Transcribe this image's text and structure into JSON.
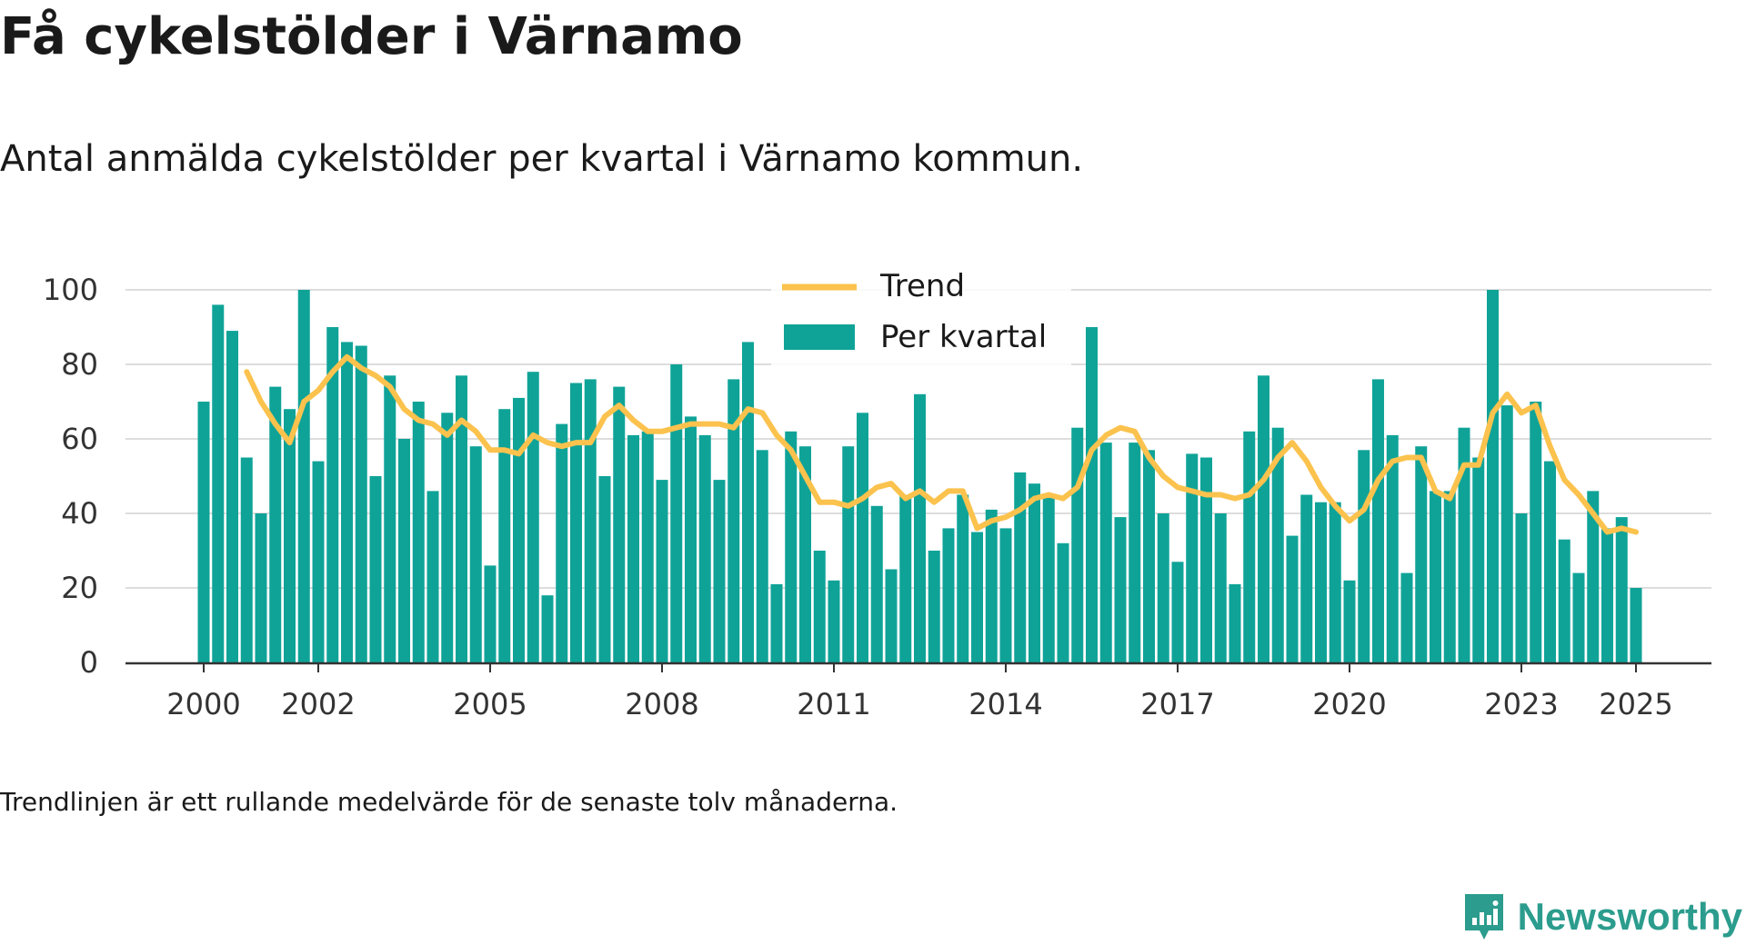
{
  "header": {
    "title": "Få cykelstölder i Värnamo",
    "subtitle": "Antal anmälda cykelstölder per kvartal i Värnamo kommun."
  },
  "footer": {
    "note": "Trendlinjen är ett rullande medelvärde för de senaste tolv månaderna.",
    "brand": "Newsworthy",
    "brand_icon": "chart-speech-bubble-icon"
  },
  "colors": {
    "bars": "#0fa398",
    "trend": "#fbc24d",
    "grid": "#dddddd",
    "axis": "#333333",
    "brand": "#2b9c8d"
  },
  "chart_data": {
    "type": "bar",
    "x_start": "2000 Q1",
    "x_tick_labels": [
      "2000",
      "2002",
      "2005",
      "2008",
      "2011",
      "2014",
      "2017",
      "2020",
      "2023",
      "2025"
    ],
    "x_tick_years": [
      2000,
      2002,
      2005,
      2008,
      2011,
      2014,
      2017,
      2020,
      2023,
      2025
    ],
    "ylim": [
      0,
      100
    ],
    "y_ticks": [
      0,
      20,
      40,
      60,
      80,
      100
    ],
    "grid": true,
    "legend_position": "top-center",
    "legend": [
      {
        "label": "Trend",
        "kind": "line"
      },
      {
        "label": "Per kvartal",
        "kind": "bar"
      }
    ],
    "series": [
      {
        "name": "Per kvartal",
        "type": "bar",
        "values": [
          70,
          96,
          89,
          55,
          40,
          74,
          68,
          100,
          54,
          90,
          86,
          85,
          50,
          77,
          60,
          70,
          46,
          67,
          77,
          58,
          26,
          68,
          71,
          78,
          18,
          64,
          75,
          76,
          50,
          74,
          61,
          62,
          49,
          80,
          66,
          61,
          49,
          76,
          86,
          57,
          21,
          62,
          58,
          30,
          22,
          58,
          67,
          42,
          25,
          45,
          72,
          30,
          36,
          45,
          35,
          41,
          36,
          51,
          48,
          45,
          32,
          63,
          90,
          59,
          39,
          59,
          57,
          40,
          27,
          56,
          55,
          40,
          21,
          62,
          77,
          63,
          34,
          45,
          43,
          43,
          22,
          57,
          76,
          61,
          24,
          58,
          46,
          46,
          63,
          55,
          100,
          69,
          40,
          70,
          54,
          33,
          24,
          46,
          36,
          39,
          20
        ]
      },
      {
        "name": "Trend",
        "type": "line",
        "values": [
          null,
          null,
          null,
          78,
          70,
          64,
          59,
          70,
          73,
          78,
          82,
          79,
          77,
          74,
          68,
          65,
          64,
          61,
          65,
          62,
          57,
          57,
          56,
          61,
          59,
          58,
          59,
          59,
          66,
          69,
          65,
          62,
          62,
          63,
          64,
          64,
          64,
          63,
          68,
          67,
          61,
          57,
          50,
          43,
          43,
          42,
          44,
          47,
          48,
          44,
          46,
          43,
          46,
          46,
          36,
          38,
          39,
          41,
          44,
          45,
          44,
          47,
          57,
          61,
          63,
          62,
          55,
          50,
          47,
          46,
          45,
          45,
          44,
          45,
          49,
          55,
          59,
          54,
          47,
          42,
          38,
          41,
          49,
          54,
          55,
          55,
          46,
          44,
          53,
          53,
          67,
          72,
          67,
          69,
          58,
          49,
          45,
          40,
          35,
          36,
          35
        ]
      }
    ]
  }
}
